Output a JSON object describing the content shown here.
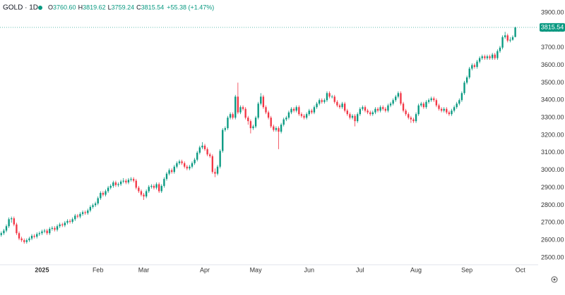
{
  "chart_data": {
    "type": "candlestick",
    "symbol": "GOLD · 1D",
    "legend_values": {
      "o_label": "O",
      "open": "3760.60",
      "h_label": "H",
      "high": "3819.62",
      "l_label": "L",
      "low": "3759.24",
      "c_label": "C",
      "close": "3815.54",
      "change": "+55.38 (+1.47%)"
    },
    "last_price_label": "3815.54",
    "up_color": "#089981",
    "down_color": "#f23645",
    "xlim": [
      -0.5,
      211
    ],
    "xticks": [
      {
        "value": 16,
        "label": "2025"
      },
      {
        "value": 38,
        "label": "Feb"
      },
      {
        "value": 56,
        "label": "Mar"
      },
      {
        "value": 80,
        "label": "Apr"
      },
      {
        "value": 100,
        "label": "May"
      },
      {
        "value": 121,
        "label": "Jun"
      },
      {
        "value": 141,
        "label": "Jul"
      },
      {
        "value": 163,
        "label": "Aug"
      },
      {
        "value": 183,
        "label": "Sep"
      },
      {
        "value": 204,
        "label": "Oct"
      }
    ],
    "ylim": [
      2460,
      3972
    ],
    "yticks": [
      {
        "value": 2500,
        "label": "2500.00"
      },
      {
        "value": 2600,
        "label": "2600.00"
      },
      {
        "value": 2700,
        "label": "2700.00"
      },
      {
        "value": 2800,
        "label": "2800.00"
      },
      {
        "value": 2900,
        "label": "2900.00"
      },
      {
        "value": 3000,
        "label": "3000.00"
      },
      {
        "value": 3100,
        "label": "3100.00"
      },
      {
        "value": 3200,
        "label": "3200.00"
      },
      {
        "value": 3300,
        "label": "3300.00"
      },
      {
        "value": 3400,
        "label": "3400.00"
      },
      {
        "value": 3500,
        "label": "3500.00"
      },
      {
        "value": 3600,
        "label": "3600.00"
      },
      {
        "value": 3700,
        "label": "3700.00"
      },
      {
        "value": 3800,
        "label": "3800.00"
      },
      {
        "value": 3900,
        "label": "3900.00"
      }
    ],
    "candles": [
      [
        2630,
        2650,
        2620,
        2640
      ],
      [
        2640,
        2665,
        2630,
        2655
      ],
      [
        2655,
        2690,
        2645,
        2680
      ],
      [
        2680,
        2730,
        2670,
        2720
      ],
      [
        2720,
        2735,
        2700,
        2725
      ],
      [
        2725,
        2735,
        2680,
        2690
      ],
      [
        2690,
        2700,
        2630,
        2640
      ],
      [
        2640,
        2650,
        2600,
        2610
      ],
      [
        2610,
        2620,
        2590,
        2600
      ],
      [
        2600,
        2610,
        2580,
        2590
      ],
      [
        2590,
        2610,
        2580,
        2600
      ],
      [
        2600,
        2620,
        2590,
        2610
      ],
      [
        2610,
        2635,
        2600,
        2625
      ],
      [
        2625,
        2635,
        2610,
        2620
      ],
      [
        2620,
        2645,
        2610,
        2635
      ],
      [
        2635,
        2650,
        2625,
        2640
      ],
      [
        2640,
        2660,
        2630,
        2650
      ],
      [
        2650,
        2665,
        2640,
        2655
      ],
      [
        2655,
        2665,
        2630,
        2640
      ],
      [
        2640,
        2675,
        2630,
        2665
      ],
      [
        2665,
        2680,
        2655,
        2670
      ],
      [
        2670,
        2680,
        2650,
        2660
      ],
      [
        2660,
        2690,
        2650,
        2680
      ],
      [
        2680,
        2700,
        2670,
        2690
      ],
      [
        2690,
        2700,
        2675,
        2685
      ],
      [
        2685,
        2710,
        2675,
        2700
      ],
      [
        2700,
        2720,
        2690,
        2710
      ],
      [
        2710,
        2720,
        2695,
        2705
      ],
      [
        2705,
        2730,
        2695,
        2720
      ],
      [
        2720,
        2750,
        2710,
        2740
      ],
      [
        2740,
        2750,
        2725,
        2735
      ],
      [
        2735,
        2760,
        2725,
        2750
      ],
      [
        2750,
        2770,
        2740,
        2760
      ],
      [
        2760,
        2770,
        2745,
        2755
      ],
      [
        2755,
        2780,
        2745,
        2770
      ],
      [
        2770,
        2800,
        2760,
        2790
      ],
      [
        2790,
        2810,
        2780,
        2800
      ],
      [
        2800,
        2820,
        2790,
        2810
      ],
      [
        2810,
        2850,
        2800,
        2840
      ],
      [
        2840,
        2880,
        2830,
        2870
      ],
      [
        2870,
        2880,
        2850,
        2860
      ],
      [
        2860,
        2890,
        2850,
        2880
      ],
      [
        2880,
        2910,
        2870,
        2900
      ],
      [
        2900,
        2920,
        2890,
        2910
      ],
      [
        2910,
        2940,
        2900,
        2930
      ],
      [
        2930,
        2940,
        2905,
        2915
      ],
      [
        2915,
        2930,
        2905,
        2920
      ],
      [
        2920,
        2945,
        2910,
        2935
      ],
      [
        2935,
        2955,
        2925,
        2940
      ],
      [
        2940,
        2950,
        2920,
        2930
      ],
      [
        2930,
        2955,
        2920,
        2945
      ],
      [
        2945,
        2960,
        2935,
        2950
      ],
      [
        2950,
        2960,
        2930,
        2940
      ],
      [
        2940,
        2950,
        2890,
        2900
      ],
      [
        2900,
        2910,
        2870,
        2880
      ],
      [
        2880,
        2890,
        2850,
        2860
      ],
      [
        2860,
        2870,
        2830,
        2850
      ],
      [
        2850,
        2890,
        2840,
        2880
      ],
      [
        2880,
        2915,
        2870,
        2905
      ],
      [
        2905,
        2920,
        2895,
        2910
      ],
      [
        2910,
        2920,
        2890,
        2900
      ],
      [
        2900,
        2930,
        2890,
        2920
      ],
      [
        2920,
        2930,
        2870,
        2880
      ],
      [
        2880,
        2920,
        2870,
        2910
      ],
      [
        2910,
        2960,
        2900,
        2950
      ],
      [
        2950,
        2990,
        2940,
        2980
      ],
      [
        2980,
        3010,
        2970,
        3000
      ],
      [
        3000,
        3010,
        2980,
        2990
      ],
      [
        2990,
        3030,
        2980,
        3020
      ],
      [
        3020,
        3050,
        3010,
        3040
      ],
      [
        3040,
        3060,
        3030,
        3050
      ],
      [
        3050,
        3060,
        3030,
        3040
      ],
      [
        3040,
        3050,
        3010,
        3020
      ],
      [
        3020,
        3030,
        3000,
        3010
      ],
      [
        3010,
        3030,
        3000,
        3020
      ],
      [
        3020,
        3050,
        3010,
        3040
      ],
      [
        3040,
        3070,
        3030,
        3060
      ],
      [
        3060,
        3110,
        3050,
        3100
      ],
      [
        3100,
        3140,
        3090,
        3130
      ],
      [
        3130,
        3160,
        3120,
        3140
      ],
      [
        3140,
        3150,
        3110,
        3120
      ],
      [
        3120,
        3130,
        3080,
        3090
      ],
      [
        3090,
        3100,
        3070,
        3080
      ],
      [
        3080,
        3090,
        2980,
        2990
      ],
      [
        2990,
        3010,
        2960,
        2980
      ],
      [
        2980,
        3030,
        2970,
        3020
      ],
      [
        3020,
        3120,
        3010,
        3110
      ],
      [
        3110,
        3240,
        3100,
        3230
      ],
      [
        3230,
        3250,
        3220,
        3240
      ],
      [
        3240,
        3310,
        3230,
        3300
      ],
      [
        3300,
        3330,
        3290,
        3320
      ],
      [
        3320,
        3330,
        3290,
        3300
      ],
      [
        3300,
        3430,
        3290,
        3420
      ],
      [
        3420,
        3500,
        3320,
        3330
      ],
      [
        3330,
        3370,
        3320,
        3360
      ],
      [
        3360,
        3370,
        3340,
        3350
      ],
      [
        3350,
        3360,
        3290,
        3300
      ],
      [
        3300,
        3310,
        3260,
        3280
      ],
      [
        3280,
        3290,
        3210,
        3240
      ],
      [
        3240,
        3260,
        3230,
        3250
      ],
      [
        3250,
        3310,
        3240,
        3300
      ],
      [
        3300,
        3390,
        3290,
        3380
      ],
      [
        3380,
        3440,
        3370,
        3420
      ],
      [
        3420,
        3430,
        3350,
        3360
      ],
      [
        3360,
        3370,
        3320,
        3330
      ],
      [
        3330,
        3340,
        3290,
        3300
      ],
      [
        3300,
        3310,
        3240,
        3250
      ],
      [
        3250,
        3260,
        3220,
        3230
      ],
      [
        3230,
        3250,
        3220,
        3240
      ],
      [
        3240,
        3250,
        3120,
        3220
      ],
      [
        3220,
        3270,
        3210,
        3260
      ],
      [
        3260,
        3300,
        3250,
        3290
      ],
      [
        3290,
        3310,
        3280,
        3300
      ],
      [
        3300,
        3340,
        3290,
        3330
      ],
      [
        3330,
        3360,
        3320,
        3350
      ],
      [
        3350,
        3360,
        3330,
        3340
      ],
      [
        3340,
        3370,
        3330,
        3360
      ],
      [
        3360,
        3370,
        3310,
        3320
      ],
      [
        3320,
        3330,
        3300,
        3310
      ],
      [
        3310,
        3320,
        3290,
        3300
      ],
      [
        3300,
        3330,
        3290,
        3320
      ],
      [
        3320,
        3350,
        3310,
        3340
      ],
      [
        3340,
        3350,
        3320,
        3330
      ],
      [
        3330,
        3370,
        3320,
        3360
      ],
      [
        3360,
        3390,
        3350,
        3380
      ],
      [
        3380,
        3410,
        3370,
        3400
      ],
      [
        3400,
        3410,
        3380,
        3390
      ],
      [
        3390,
        3410,
        3380,
        3400
      ],
      [
        3400,
        3450,
        3390,
        3440
      ],
      [
        3440,
        3450,
        3410,
        3420
      ],
      [
        3420,
        3430,
        3410,
        3420
      ],
      [
        3420,
        3430,
        3380,
        3390
      ],
      [
        3390,
        3400,
        3360,
        3370
      ],
      [
        3370,
        3380,
        3350,
        3360
      ],
      [
        3360,
        3390,
        3350,
        3380
      ],
      [
        3380,
        3390,
        3330,
        3340
      ],
      [
        3340,
        3350,
        3310,
        3320
      ],
      [
        3320,
        3330,
        3290,
        3300
      ],
      [
        3300,
        3320,
        3290,
        3310
      ],
      [
        3310,
        3320,
        3250,
        3280
      ],
      [
        3280,
        3330,
        3270,
        3320
      ],
      [
        3320,
        3360,
        3310,
        3350
      ],
      [
        3350,
        3370,
        3340,
        3360
      ],
      [
        3360,
        3370,
        3330,
        3340
      ],
      [
        3340,
        3350,
        3320,
        3330
      ],
      [
        3330,
        3340,
        3310,
        3320
      ],
      [
        3320,
        3340,
        3310,
        3330
      ],
      [
        3330,
        3360,
        3320,
        3350
      ],
      [
        3350,
        3360,
        3330,
        3340
      ],
      [
        3340,
        3370,
        3330,
        3360
      ],
      [
        3360,
        3370,
        3340,
        3350
      ],
      [
        3350,
        3360,
        3330,
        3340
      ],
      [
        3340,
        3380,
        3330,
        3370
      ],
      [
        3370,
        3390,
        3360,
        3380
      ],
      [
        3380,
        3410,
        3370,
        3400
      ],
      [
        3400,
        3430,
        3390,
        3420
      ],
      [
        3420,
        3450,
        3410,
        3440
      ],
      [
        3440,
        3450,
        3370,
        3380
      ],
      [
        3380,
        3390,
        3330,
        3340
      ],
      [
        3340,
        3350,
        3310,
        3320
      ],
      [
        3320,
        3330,
        3290,
        3300
      ],
      [
        3300,
        3310,
        3270,
        3290
      ],
      [
        3290,
        3300,
        3270,
        3280
      ],
      [
        3280,
        3330,
        3270,
        3320
      ],
      [
        3320,
        3380,
        3310,
        3370
      ],
      [
        3370,
        3390,
        3360,
        3380
      ],
      [
        3380,
        3390,
        3350,
        3360
      ],
      [
        3360,
        3400,
        3350,
        3390
      ],
      [
        3390,
        3410,
        3380,
        3400
      ],
      [
        3400,
        3420,
        3390,
        3410
      ],
      [
        3410,
        3420,
        3390,
        3400
      ],
      [
        3400,
        3410,
        3360,
        3370
      ],
      [
        3370,
        3380,
        3340,
        3350
      ],
      [
        3350,
        3360,
        3330,
        3340
      ],
      [
        3340,
        3360,
        3330,
        3350
      ],
      [
        3350,
        3360,
        3320,
        3330
      ],
      [
        3330,
        3340,
        3310,
        3320
      ],
      [
        3320,
        3350,
        3310,
        3340
      ],
      [
        3340,
        3370,
        3330,
        3360
      ],
      [
        3360,
        3390,
        3350,
        3380
      ],
      [
        3380,
        3410,
        3370,
        3400
      ],
      [
        3400,
        3450,
        3390,
        3440
      ],
      [
        3440,
        3510,
        3430,
        3500
      ],
      [
        3500,
        3540,
        3490,
        3530
      ],
      [
        3530,
        3590,
        3520,
        3580
      ],
      [
        3580,
        3610,
        3570,
        3600
      ],
      [
        3600,
        3610,
        3580,
        3590
      ],
      [
        3590,
        3630,
        3580,
        3620
      ],
      [
        3620,
        3650,
        3610,
        3640
      ],
      [
        3640,
        3660,
        3630,
        3650
      ],
      [
        3650,
        3660,
        3630,
        3640
      ],
      [
        3640,
        3660,
        3630,
        3650
      ],
      [
        3650,
        3660,
        3630,
        3640
      ],
      [
        3640,
        3670,
        3630,
        3660
      ],
      [
        3660,
        3670,
        3630,
        3640
      ],
      [
        3640,
        3690,
        3630,
        3680
      ],
      [
        3680,
        3710,
        3670,
        3700
      ],
      [
        3700,
        3770,
        3690,
        3760
      ],
      [
        3760,
        3790,
        3750,
        3770
      ],
      [
        3770,
        3780,
        3730,
        3740
      ],
      [
        3740,
        3760,
        3730,
        3745
      ],
      [
        3745,
        3770,
        3740,
        3760
      ],
      [
        3760.6,
        3819.62,
        3759.24,
        3815.54
      ]
    ]
  }
}
